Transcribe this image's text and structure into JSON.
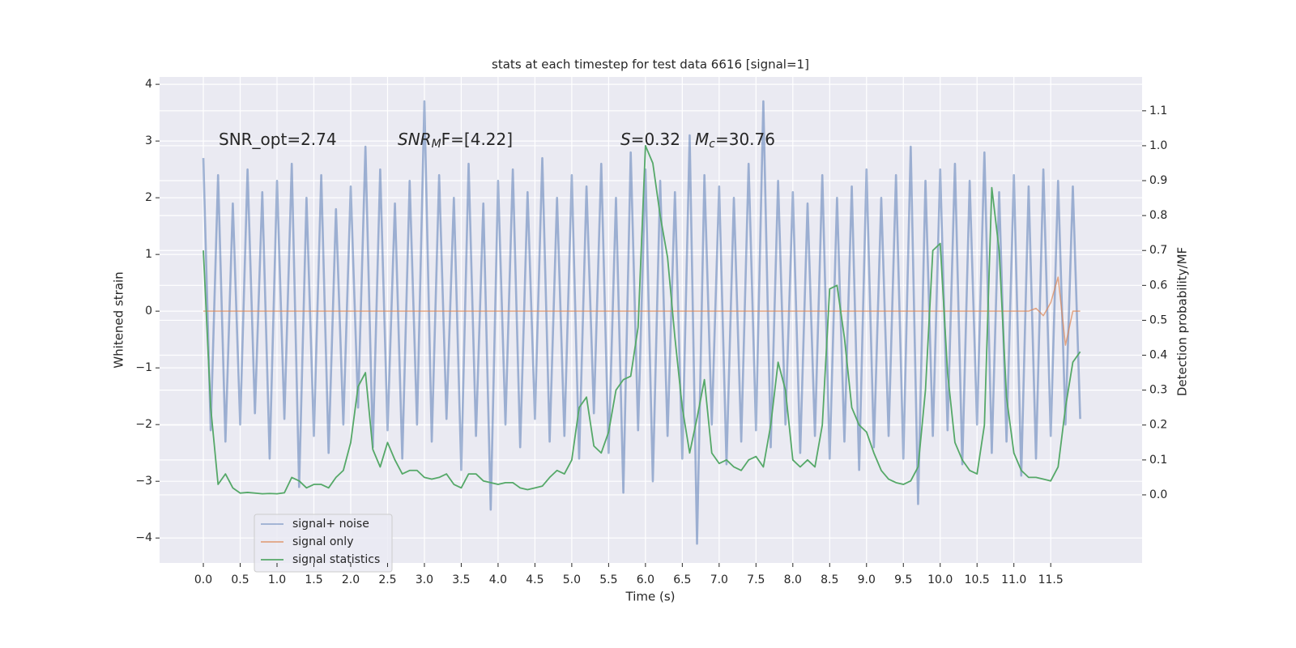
{
  "chart_data": {
    "type": "line",
    "title": "stats at each timestep for test data 6616 [signal=1]",
    "xlabel": "Time (s)",
    "ylabel": "Whitened strain",
    "y2label": "Detection probability/MF",
    "annotations": [
      {
        "parts": [
          "SNR_opt=2.74"
        ]
      },
      {
        "parts": [
          "SNR",
          "M",
          "F=[4.22]"
        ]
      },
      {
        "parts": [
          "S",
          "=0.32"
        ]
      },
      {
        "parts": [
          "M",
          "c",
          "=30.76"
        ]
      }
    ],
    "x": [
      0,
      0.1,
      0.2,
      0.3,
      0.4,
      0.5,
      0.6,
      0.7,
      0.8,
      0.9,
      1,
      1.1,
      1.2,
      1.3,
      1.4,
      1.5,
      1.6,
      1.7,
      1.8,
      1.9,
      2,
      2.1,
      2.2,
      2.3,
      2.4,
      2.5,
      2.6,
      2.7,
      2.8,
      2.9,
      3,
      3.1,
      3.2,
      3.3,
      3.4,
      3.5,
      3.6,
      3.7,
      3.8,
      3.9,
      4,
      4.1,
      4.2,
      4.3,
      4.4,
      4.5,
      4.6,
      4.7,
      4.8,
      4.9,
      5,
      5.1,
      5.2,
      5.3,
      5.4,
      5.5,
      5.6,
      5.7,
      5.8,
      5.9,
      6,
      6.1,
      6.2,
      6.3,
      6.4,
      6.5,
      6.6,
      6.7,
      6.8,
      6.9,
      7,
      7.1,
      7.2,
      7.3,
      7.4,
      7.5,
      7.6,
      7.7,
      7.8,
      7.9,
      8,
      8.1,
      8.2,
      8.3,
      8.4,
      8.5,
      8.6,
      8.7,
      8.8,
      8.9,
      9,
      9.1,
      9.2,
      9.3,
      9.4,
      9.5,
      9.6,
      9.7,
      9.8,
      9.9,
      10,
      10.1,
      10.2,
      10.3,
      10.4,
      10.5,
      10.6,
      10.7,
      10.8,
      10.9,
      11,
      11.1,
      11.2,
      11.3,
      11.4,
      11.5,
      11.6,
      11.7,
      11.8,
      11.9
    ],
    "series": [
      {
        "name": "signal+ noise",
        "color": "#4c72b0",
        "values": [
          2.7,
          -2.1,
          2.4,
          -2.3,
          1.9,
          -2.0,
          2.5,
          -1.8,
          2.1,
          -2.6,
          2.3,
          -1.9,
          2.6,
          -3.1,
          2.0,
          -2.2,
          2.4,
          -2.5,
          1.8,
          -2.0,
          2.2,
          -1.7,
          2.9,
          -2.4,
          2.5,
          -2.1,
          1.9,
          -2.6,
          2.3,
          -2.0,
          3.7,
          -2.3,
          2.4,
          -1.9,
          2.0,
          -2.8,
          2.6,
          -2.2,
          1.9,
          -3.5,
          2.3,
          -2.0,
          2.5,
          -2.4,
          2.1,
          -1.9,
          2.7,
          -2.3,
          2.0,
          -2.2,
          2.4,
          -2.6,
          2.2,
          -1.8,
          2.6,
          -2.5,
          2.0,
          -3.2,
          2.8,
          -2.1,
          2.5,
          -3.0,
          2.3,
          -2.2,
          2.1,
          -2.6,
          3.1,
          -4.1,
          2.4,
          -2.0,
          2.2,
          -2.7,
          2.0,
          -2.3,
          2.6,
          -2.1,
          3.7,
          -2.4,
          2.3,
          -2.0,
          2.1,
          -2.5,
          1.9,
          -2.2,
          2.4,
          -2.6,
          2.0,
          -2.3,
          2.2,
          -2.8,
          2.5,
          -2.4,
          2.0,
          -2.2,
          2.4,
          -2.6,
          2.9,
          -3.4,
          2.3,
          -2.2,
          2.5,
          -2.1,
          2.6,
          -2.7,
          2.3,
          -2.0,
          2.8,
          -2.5,
          2.1,
          -2.3,
          2.4,
          -2.9,
          2.2,
          -2.6,
          2.5,
          -2.2,
          2.3,
          -2.0,
          2.2,
          -1.9
        ]
      },
      {
        "name": "signal only",
        "color": "#dd8452",
        "values": [
          0,
          0,
          0,
          0,
          0,
          0,
          0,
          0,
          0,
          0,
          0,
          0,
          0,
          0,
          0,
          0,
          0,
          0,
          0,
          0,
          0,
          0,
          0,
          0,
          0,
          0,
          0,
          0,
          0,
          0,
          0,
          0,
          0,
          0,
          0,
          0,
          0,
          0,
          0,
          0,
          0,
          0,
          0,
          0,
          0,
          0,
          0,
          0,
          0,
          0,
          0,
          0,
          0,
          0,
          0,
          0,
          0,
          0,
          0,
          0,
          0,
          0,
          0,
          0,
          0,
          0,
          0,
          0,
          0,
          0,
          0,
          0,
          0,
          0,
          0,
          0,
          0,
          0,
          0,
          0,
          0,
          0,
          0,
          0,
          0,
          0,
          0,
          0,
          0,
          0,
          0,
          0,
          0,
          0,
          0,
          0,
          0,
          0,
          0,
          0,
          0,
          0,
          0,
          0,
          0,
          0,
          0,
          0,
          0,
          0,
          0,
          0,
          0,
          0.05,
          -0.08,
          0.15,
          0.6,
          -0.6,
          0,
          0
        ]
      },
      {
        "name": "signal statistics",
        "color": "#55a868",
        "axis": "y2",
        "values": [
          0.7,
          0.25,
          0.03,
          0.06,
          0.02,
          0.005,
          0.007,
          0.005,
          0.003,
          0.004,
          0.003,
          0.006,
          0.05,
          0.04,
          0.02,
          0.03,
          0.03,
          0.02,
          0.05,
          0.07,
          0.15,
          0.31,
          0.35,
          0.13,
          0.08,
          0.15,
          0.1,
          0.06,
          0.07,
          0.07,
          0.05,
          0.045,
          0.05,
          0.06,
          0.03,
          0.02,
          0.06,
          0.06,
          0.04,
          0.035,
          0.03,
          0.035,
          0.035,
          0.02,
          0.015,
          0.02,
          0.025,
          0.05,
          0.07,
          0.06,
          0.1,
          0.25,
          0.28,
          0.14,
          0.12,
          0.18,
          0.3,
          0.33,
          0.34,
          0.48,
          1.0,
          0.95,
          0.8,
          0.68,
          0.45,
          0.25,
          0.12,
          0.22,
          0.33,
          0.12,
          0.09,
          0.1,
          0.08,
          0.07,
          0.1,
          0.11,
          0.08,
          0.2,
          0.38,
          0.3,
          0.1,
          0.08,
          0.1,
          0.08,
          0.2,
          0.59,
          0.6,
          0.45,
          0.25,
          0.2,
          0.18,
          0.12,
          0.07,
          0.045,
          0.035,
          0.03,
          0.04,
          0.08,
          0.3,
          0.7,
          0.72,
          0.35,
          0.15,
          0.1,
          0.07,
          0.06,
          0.2,
          0.88,
          0.7,
          0.28,
          0.12,
          0.07,
          0.05,
          0.05,
          0.045,
          0.04,
          0.08,
          0.25,
          0.38,
          0.41
        ]
      }
    ],
    "xlim": [
      -0.594,
      12.74
    ],
    "xticks": [
      {
        "value": 0,
        "label": "0.0"
      },
      {
        "value": 0.5,
        "label": "0.5"
      },
      {
        "value": 1,
        "label": "1.0"
      },
      {
        "value": 1.5,
        "label": "1.5"
      },
      {
        "value": 2,
        "label": "2.0"
      },
      {
        "value": 2.5,
        "label": "2.5"
      },
      {
        "value": 3,
        "label": "3.0"
      },
      {
        "value": 3.5,
        "label": "3.5"
      },
      {
        "value": 4,
        "label": "4.0"
      },
      {
        "value": 4.5,
        "label": "4.5"
      },
      {
        "value": 5,
        "label": "5.0"
      },
      {
        "value": 5.5,
        "label": "5.5"
      },
      {
        "value": 6,
        "label": "6.0"
      },
      {
        "value": 6.5,
        "label": "6.5"
      },
      {
        "value": 7,
        "label": "7.0"
      },
      {
        "value": 7.5,
        "label": "7.5"
      },
      {
        "value": 8,
        "label": "8.0"
      },
      {
        "value": 8.5,
        "label": "8.5"
      },
      {
        "value": 9,
        "label": "9.0"
      },
      {
        "value": 9.5,
        "label": "9.5"
      },
      {
        "value": 10,
        "label": "10.0"
      },
      {
        "value": 10.5,
        "label": "10.5"
      },
      {
        "value": 11,
        "label": "11.0"
      },
      {
        "value": 11.5,
        "label": "11.5"
      }
    ],
    "ylim": [
      -4.44,
      4.13
    ],
    "yticks": [
      {
        "value": -4,
        "label": "−4"
      },
      {
        "value": -3,
        "label": "−3"
      },
      {
        "value": -2,
        "label": "−2"
      },
      {
        "value": -1,
        "label": "−1"
      },
      0,
      1,
      2,
      3,
      4
    ],
    "y2lim": [
      -0.195,
      1.197
    ],
    "y2ticks": [
      {
        "value": 0,
        "label": "0.0"
      },
      {
        "value": 0.1,
        "label": "0.1"
      },
      {
        "value": 0.2,
        "label": "0.2"
      },
      {
        "value": 0.3,
        "label": "0.3"
      },
      {
        "value": 0.4,
        "label": "0.4"
      },
      {
        "value": 0.5,
        "label": "0.5"
      },
      {
        "value": 0.6,
        "label": "0.6"
      },
      {
        "value": 0.7,
        "label": "0.7"
      },
      {
        "value": 0.8,
        "label": "0.8"
      },
      {
        "value": 0.9,
        "label": "0.9"
      },
      {
        "value": 1,
        "label": "1.0"
      },
      {
        "value": 1.1,
        "label": "1.1"
      }
    ],
    "grid": true,
    "legend": "lower left"
  }
}
